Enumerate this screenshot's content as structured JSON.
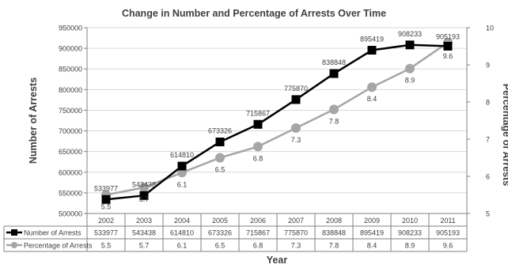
{
  "chart_data": {
    "type": "line",
    "title": "Change in Number and Percentage of Arrests Over Time",
    "xlabel": "Year",
    "ylabel_left": "Number of Arrests",
    "ylabel_right": "Percentage of Arrests",
    "categories": [
      "2002",
      "2003",
      "2004",
      "2005",
      "2006",
      "2007",
      "2008",
      "2009",
      "2010",
      "2011"
    ],
    "y_left": {
      "min": 500000,
      "max": 950000,
      "step": 50000,
      "ticks": [
        "500000",
        "550000",
        "600000",
        "650000",
        "700000",
        "750000",
        "800000",
        "850000",
        "900000",
        "950000"
      ]
    },
    "y_right": {
      "min": 5,
      "max": 10,
      "step": 1,
      "ticks": [
        "5",
        "6",
        "7",
        "8",
        "9",
        "10"
      ]
    },
    "grid": true,
    "legend_position": "table-below",
    "series": [
      {
        "name": "Number of Arrests",
        "axis": "left",
        "color": "#000000",
        "marker": "square",
        "values": [
          533977,
          543438,
          614810,
          673326,
          715867,
          775870,
          838848,
          895419,
          908233,
          905193
        ],
        "labels": [
          "533977",
          "543438",
          "614810",
          "673326",
          "715867",
          "775870",
          "838848",
          "895419",
          "908233",
          "905193"
        ]
      },
      {
        "name": "Percentage of Arrests",
        "axis": "right",
        "color": "#a6a6a6",
        "marker": "circle",
        "values": [
          5.5,
          5.7,
          6.1,
          6.5,
          6.8,
          7.3,
          7.8,
          8.4,
          8.9,
          9.6
        ],
        "labels": [
          "5.5",
          "5.7",
          "6.1",
          "6.5",
          "6.8",
          "7.3",
          "7.8",
          "8.4",
          "8.9",
          "9.6"
        ]
      }
    ]
  }
}
